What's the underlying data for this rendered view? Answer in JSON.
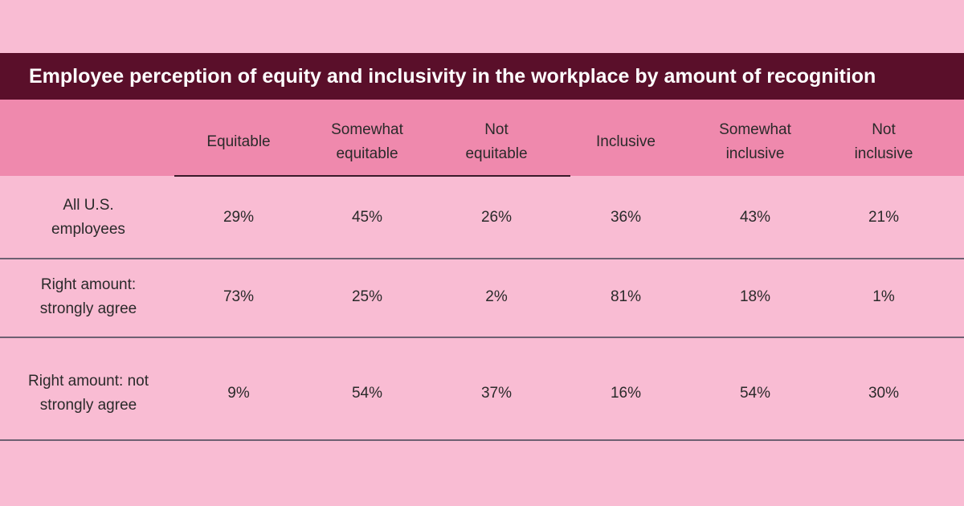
{
  "title": "Employee perception of equity and inclusivity in the workplace by amount of recognition",
  "table": {
    "columns": [
      "Equitable",
      "Somewhat equitable",
      "Not equitable",
      "Inclusive",
      "Somewhat inclusive",
      "Not inclusive"
    ],
    "rows": [
      {
        "label": "All U.S. employees",
        "cells": [
          "29%",
          "45%",
          "26%",
          "36%",
          "43%",
          "21%"
        ]
      },
      {
        "label": "Right amount: strongly agree",
        "cells": [
          "73%",
          "25%",
          "2%",
          "81%",
          "18%",
          "1%"
        ]
      },
      {
        "label": "Right amount: not strongly agree",
        "cells": [
          "9%",
          "54%",
          "37%",
          "16%",
          "54%",
          "30%"
        ]
      }
    ]
  }
}
